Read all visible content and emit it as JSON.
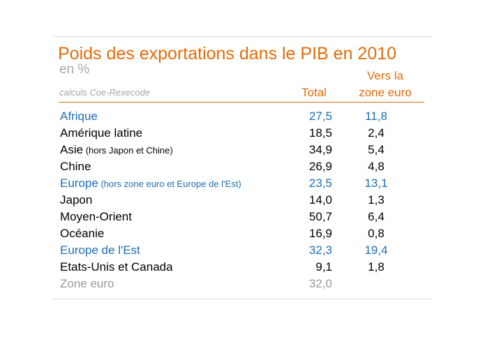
{
  "colors": {
    "orange": "#e36c09",
    "blue": "#1f6db3",
    "black": "#000000",
    "gray": "#999999"
  },
  "table": {
    "title": "Poids des exportations dans le PIB en 2010",
    "subtitle": "en %",
    "source": "calculs Coe-Rexecode",
    "header_total": "Total",
    "header_euro_line1": "Vers la",
    "header_euro_line2": "zone euro",
    "rows": [
      {
        "name": "Afrique",
        "note": "",
        "total": "27,5",
        "euro": "11,8",
        "color": "#1f6db3"
      },
      {
        "name": "Amérique latine",
        "note": "",
        "total": "18,5",
        "euro": "2,4",
        "color": "#000000"
      },
      {
        "name": "Asie",
        "note": " (hors Japon et Chine)",
        "total": "34,9",
        "euro": "5,4",
        "color": "#000000"
      },
      {
        "name": "Chine",
        "note": "",
        "total": "26,9",
        "euro": "4,8",
        "color": "#000000"
      },
      {
        "name": "Europe",
        "note": " (hors zone  euro et Europe de l'Est)",
        "total": "23,5",
        "euro": "13,1",
        "color": "#1f6db3"
      },
      {
        "name": "Japon",
        "note": "",
        "total": "14,0",
        "euro": "1,3",
        "color": "#000000"
      },
      {
        "name": "Moyen-Orient",
        "note": "",
        "total": "50,7",
        "euro": "6,4",
        "color": "#000000"
      },
      {
        "name": "Océanie",
        "note": "",
        "total": "16,9",
        "euro": "0,8",
        "color": "#000000"
      },
      {
        "name": "Europe de l'Est",
        "note": "",
        "total": "32,3",
        "euro": "19,4",
        "color": "#1f6db3"
      },
      {
        "name": "Etats-Unis et Canada",
        "note": "",
        "total": "9,1",
        "euro": "1,8",
        "color": "#000000"
      },
      {
        "name": "Zone euro",
        "note": "",
        "total": "32,0",
        "euro": "",
        "color": "#999999"
      }
    ]
  }
}
